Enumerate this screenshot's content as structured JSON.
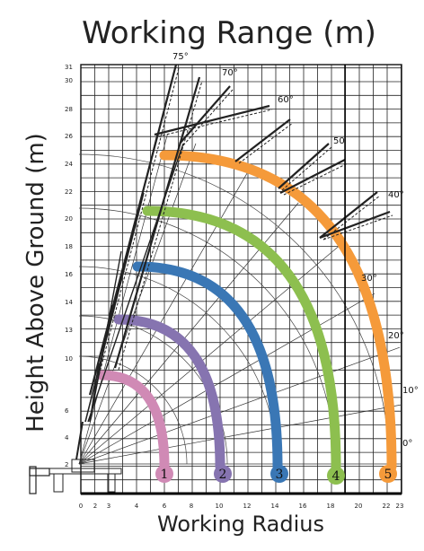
{
  "title": "Working Range (m)",
  "ylabel": "Height Above Ground (m)",
  "xlabel": "Working Radius",
  "y_ticks": [
    "2",
    "4",
    "6",
    "10",
    "13",
    "14",
    "16",
    "18",
    "20",
    "22",
    "24",
    "26",
    "28",
    "30",
    "31"
  ],
  "x_ticks": [
    "0",
    "2",
    "3",
    "4",
    "6",
    "8",
    "10",
    "12",
    "14",
    "16",
    "18",
    "20",
    "22",
    "23"
  ],
  "angles": [
    {
      "label": "75°"
    },
    {
      "label": "70°"
    },
    {
      "label": "60°"
    },
    {
      "label": "50"
    },
    {
      "label": "40°"
    },
    {
      "label": "30°"
    },
    {
      "label": "20°"
    },
    {
      "label": "10°"
    },
    {
      "label": "0°"
    }
  ],
  "arcs": [
    {
      "label": "1",
      "color": "#d08ab5"
    },
    {
      "label": "2",
      "color": "#8674b0"
    },
    {
      "label": "3",
      "color": "#3a77b5"
    },
    {
      "label": "4",
      "color": "#8dbf4f"
    },
    {
      "label": "5",
      "color": "#f59a3a"
    }
  ]
}
